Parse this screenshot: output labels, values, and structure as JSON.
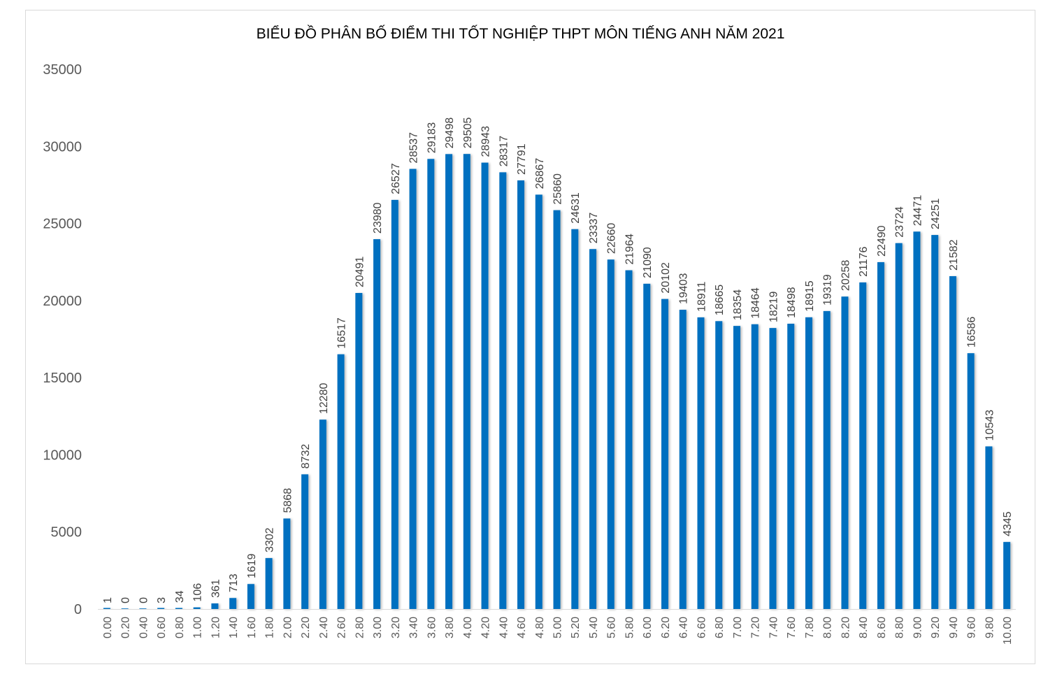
{
  "chart_data": {
    "type": "bar",
    "title": "BIỂU ĐỒ PHÂN BỐ ĐIỂM THI TỐT NGHIỆP THPT MÔN TIẾNG ANH NĂM 2021",
    "xlabel": "",
    "ylabel": "",
    "ylim": [
      0,
      35000
    ],
    "yticks": [
      "0",
      "5000",
      "10000",
      "15000",
      "20000",
      "25000",
      "30000",
      "35000"
    ],
    "grid": false,
    "legend": "none",
    "bar_color": "#0070c0",
    "categories": [
      "0.00",
      "0.20",
      "0.40",
      "0.60",
      "0.80",
      "1.00",
      "1.20",
      "1.40",
      "1.60",
      "1.80",
      "2.00",
      "2.20",
      "2.40",
      "2.60",
      "2.80",
      "3.00",
      "3.20",
      "3.40",
      "3.60",
      "3.80",
      "4.00",
      "4.20",
      "4.40",
      "4.60",
      "4.80",
      "5.00",
      "5.20",
      "5.40",
      "5.60",
      "5.80",
      "6.00",
      "6.20",
      "6.40",
      "6.60",
      "6.80",
      "7.00",
      "7.20",
      "7.40",
      "7.60",
      "7.80",
      "8.00",
      "8.20",
      "8.40",
      "8.60",
      "8.80",
      "9.00",
      "9.20",
      "9.40",
      "9.60",
      "9.80",
      "10.00"
    ],
    "values": [
      1,
      0,
      0,
      3,
      34,
      106,
      361,
      713,
      1619,
      3302,
      5868,
      8732,
      12280,
      16517,
      20491,
      23980,
      26527,
      28537,
      29183,
      29498,
      29505,
      28943,
      28317,
      27791,
      26867,
      25860,
      24631,
      23337,
      22660,
      21964,
      21090,
      20102,
      19403,
      18911,
      18665,
      18354,
      18464,
      18219,
      18498,
      18915,
      19319,
      20258,
      21176,
      22490,
      23724,
      24471,
      24251,
      21582,
      16586,
      10543,
      4345
    ]
  }
}
